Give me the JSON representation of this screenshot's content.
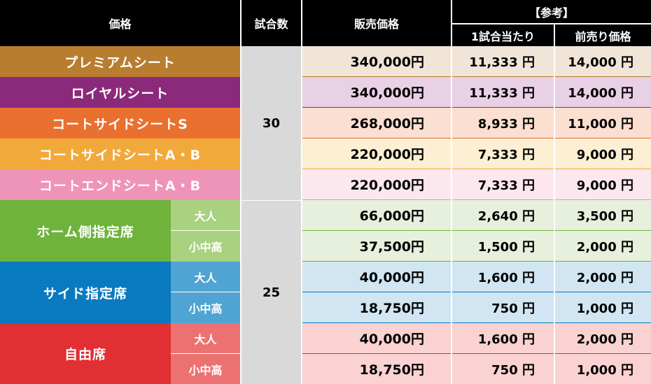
{
  "header": {
    "price_class": "価格",
    "games": "試合数",
    "sale_price": "販売価格",
    "reference": "【参考】",
    "per_game": "1試合当たり",
    "advance_price": "前売り価格"
  },
  "groups": [
    {
      "games": "30"
    },
    {
      "games": "25"
    }
  ],
  "rows": [
    {
      "label": "プレミアムシート",
      "sub": "",
      "price": "340,000円",
      "per_game": "11,333 円",
      "advance": "14,000 円"
    },
    {
      "label": "ロイヤルシート",
      "sub": "",
      "price": "340,000円",
      "per_game": "11,333 円",
      "advance": "14,000 円"
    },
    {
      "label": "コートサイドシートS",
      "sub": "",
      "price": "268,000円",
      "per_game": "8,933 円",
      "advance": "11,000 円"
    },
    {
      "label": "コートサイドシートA・B",
      "sub": "",
      "price": "220,000円",
      "per_game": "7,333 円",
      "advance": "9,000 円"
    },
    {
      "label": "コートエンドシートA・B",
      "sub": "",
      "price": "220,000円",
      "per_game": "7,333 円",
      "advance": "9,000 円"
    },
    {
      "label": "ホーム側指定席",
      "sub": "大人",
      "price": "66,000円",
      "per_game": "2,640 円",
      "advance": "3,500 円"
    },
    {
      "label": "",
      "sub": "小中高",
      "price": "37,500円",
      "per_game": "1,500 円",
      "advance": "2,000 円"
    },
    {
      "label": "サイド指定席",
      "sub": "大人",
      "price": "40,000円",
      "per_game": "1,600 円",
      "advance": "2,000 円"
    },
    {
      "label": "",
      "sub": "小中高",
      "price": "18,750円",
      "per_game": "750 円",
      "advance": "1,000 円"
    },
    {
      "label": "自由席",
      "sub": "大人",
      "price": "40,000円",
      "per_game": "1,600 円",
      "advance": "2,000 円"
    },
    {
      "label": "",
      "sub": "小中高",
      "price": "18,750円",
      "per_game": "750 円",
      "advance": "1,000 円"
    }
  ],
  "colors": {
    "premium": "#b87d2f",
    "royal": "#8b2a7a",
    "courtside_s": "#e9702f",
    "courtside_ab": "#f2a93b",
    "courtend": "#ef94b9",
    "home": "#6fb33c",
    "home_sub": "#a8d27f",
    "side": "#0a7ac0",
    "side_sub": "#4fa4d4",
    "free": "#e12f34",
    "free_sub": "#ec7272"
  }
}
